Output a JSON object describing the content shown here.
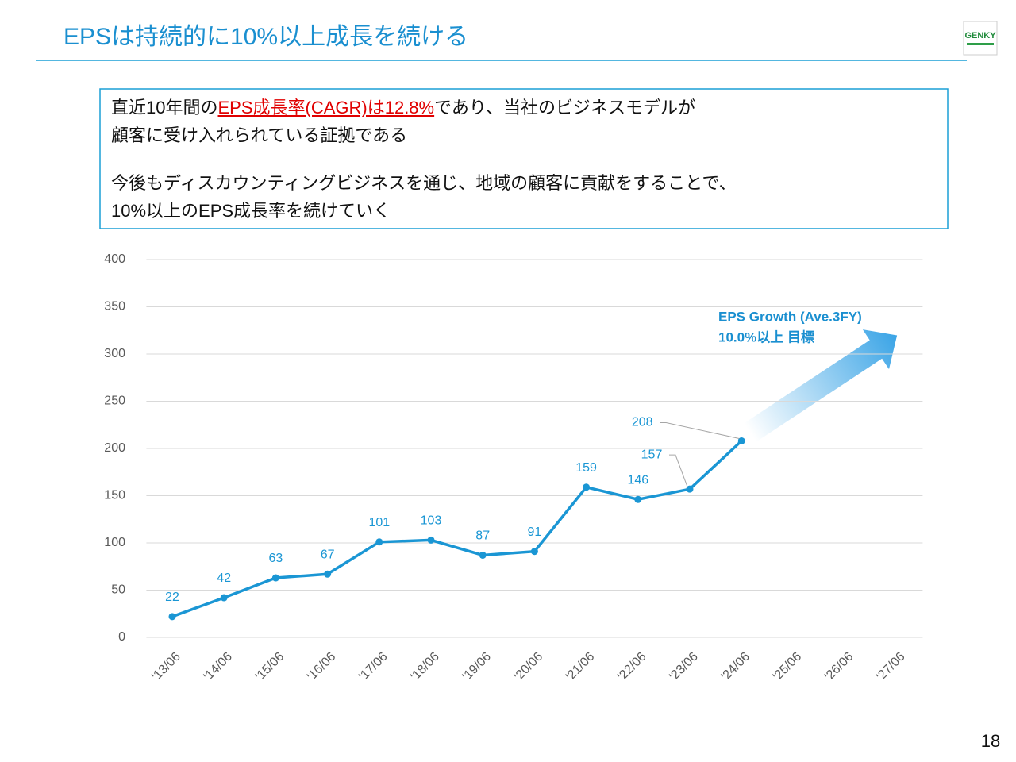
{
  "slide": {
    "title": "EPSは持続的に10%以上成長を続ける",
    "logo": "GENKY",
    "page": "18",
    "message": {
      "line1_pre": "直近10年間の",
      "line1_highlight": "EPS成長率(CAGR)は12.8%",
      "line1_post": "であり、当社のビジネスモデルが",
      "line2": "顧客に受け入れられている証拠である",
      "line3": "今後もディスカウンティングビジネスを通じ、地域の顧客に貢献をすることで、",
      "line4": "10%以上のEPS成長率を続けていく"
    }
  },
  "chart_data": {
    "type": "line",
    "color": "#1a96d4",
    "categories": [
      "'13/06",
      "'14/06",
      "'15/06",
      "'16/06",
      "'17/06",
      "'18/06",
      "'19/06",
      "'20/06",
      "'21/06",
      "'22/06",
      "'23/06",
      "'24/06",
      "'25/06",
      "'26/06",
      "'27/06"
    ],
    "values": [
      22,
      42,
      63,
      67,
      101,
      103,
      87,
      91,
      159,
      146,
      157,
      208,
      null,
      null,
      null
    ],
    "ylim": [
      0,
      400
    ],
    "yticks": [
      0,
      50,
      100,
      150,
      200,
      250,
      300,
      350,
      400
    ],
    "grid": true,
    "annotation": [
      "EPS Growth (Ave.3FY)",
      "10.0%以上 目標"
    ]
  }
}
